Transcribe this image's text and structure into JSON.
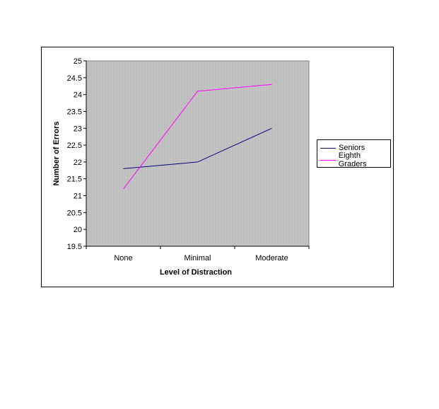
{
  "chart_data": {
    "type": "line",
    "categories": [
      "None",
      "Minimal",
      "Moderate"
    ],
    "series": [
      {
        "name": "Seniors",
        "values": [
          21.8,
          22.0,
          23.0
        ],
        "color": "#000080"
      },
      {
        "name": "Eighth Graders",
        "values": [
          21.2,
          24.1,
          24.3
        ],
        "color": "#ff00ff"
      }
    ],
    "xlabel": "Level of Distraction",
    "ylabel": "Number of Errors",
    "ylim": [
      19.5,
      25
    ],
    "yticks": [
      "19.5",
      "20",
      "20.5",
      "21",
      "21.5",
      "22",
      "22.5",
      "23",
      "23.5",
      "24",
      "24.5",
      "25"
    ],
    "legend_position": "right",
    "plot_background": "#c0c0c0"
  }
}
